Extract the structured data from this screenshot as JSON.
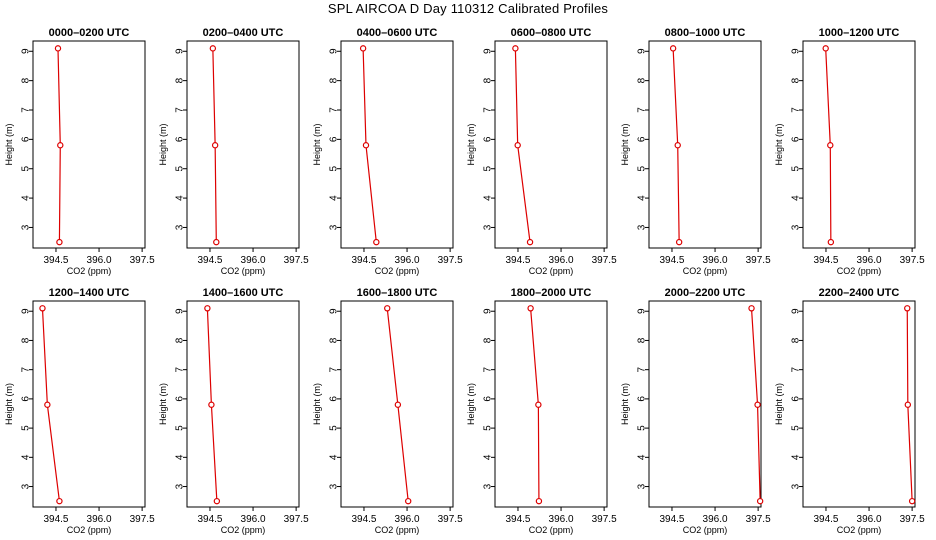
{
  "title": "SPL AIRCOA D  Day 110312  Calibrated Profiles",
  "colors": {
    "series": "#dd0000",
    "axes": "#000000"
  },
  "chart_data": [
    {
      "type": "line",
      "title": "0000–0200 UTC",
      "xlabel": "CO2 (ppm)",
      "ylabel": "Height (m)",
      "xlim": [
        393.7,
        397.6
      ],
      "ylim": [
        2.3,
        9.35
      ],
      "xticks": [
        "394.5",
        "396.0",
        "397.5"
      ],
      "yticks": [
        "3",
        "4",
        "5",
        "6",
        "7",
        "8",
        "9"
      ],
      "grid": false,
      "series": [
        {
          "x": [
            394.62,
            394.65,
            394.57
          ],
          "y": [
            2.5,
            5.8,
            9.1
          ]
        }
      ]
    },
    {
      "type": "line",
      "title": "0200–0400 UTC",
      "xlabel": "CO2 (ppm)",
      "ylabel": "Height (m)",
      "xlim": [
        393.7,
        397.6
      ],
      "ylim": [
        2.3,
        9.35
      ],
      "xticks": [
        "394.5",
        "396.0",
        "397.5"
      ],
      "yticks": [
        "3",
        "4",
        "5",
        "6",
        "7",
        "8",
        "9"
      ],
      "grid": false,
      "series": [
        {
          "x": [
            394.72,
            394.68,
            394.6
          ],
          "y": [
            2.5,
            5.8,
            9.1
          ]
        }
      ]
    },
    {
      "type": "line",
      "title": "0400–0600 UTC",
      "xlabel": "CO2 (ppm)",
      "ylabel": "Height (m)",
      "xlim": [
        393.7,
        397.6
      ],
      "ylim": [
        2.3,
        9.35
      ],
      "xticks": [
        "394.5",
        "396.0",
        "397.5"
      ],
      "yticks": [
        "3",
        "4",
        "5",
        "6",
        "7",
        "8",
        "9"
      ],
      "grid": false,
      "series": [
        {
          "x": [
            394.93,
            394.57,
            394.47
          ],
          "y": [
            2.5,
            5.8,
            9.1
          ]
        }
      ]
    },
    {
      "type": "line",
      "title": "0600–0800 UTC",
      "xlabel": "CO2 (ppm)",
      "ylabel": "Height (m)",
      "xlim": [
        393.7,
        397.6
      ],
      "ylim": [
        2.3,
        9.35
      ],
      "xticks": [
        "394.5",
        "396.0",
        "397.5"
      ],
      "yticks": [
        "3",
        "4",
        "5",
        "6",
        "7",
        "8",
        "9"
      ],
      "grid": false,
      "series": [
        {
          "x": [
            394.92,
            394.49,
            394.41
          ],
          "y": [
            2.5,
            5.8,
            9.1
          ]
        }
      ]
    },
    {
      "type": "line",
      "title": "0800–1000 UTC",
      "xlabel": "CO2 (ppm)",
      "ylabel": "Height (m)",
      "xlim": [
        393.7,
        397.6
      ],
      "ylim": [
        2.3,
        9.35
      ],
      "xticks": [
        "394.5",
        "396.0",
        "397.5"
      ],
      "yticks": [
        "3",
        "4",
        "5",
        "6",
        "7",
        "8",
        "9"
      ],
      "grid": false,
      "series": [
        {
          "x": [
            394.75,
            394.7,
            394.54
          ],
          "y": [
            2.5,
            5.8,
            9.1
          ]
        }
      ]
    },
    {
      "type": "line",
      "title": "1000–1200 UTC",
      "xlabel": "CO2 (ppm)",
      "ylabel": "Height (m)",
      "xlim": [
        393.7,
        397.6
      ],
      "ylim": [
        2.3,
        9.35
      ],
      "xticks": [
        "394.5",
        "396.0",
        "397.5"
      ],
      "yticks": [
        "3",
        "4",
        "5",
        "6",
        "7",
        "8",
        "9"
      ],
      "grid": false,
      "series": [
        {
          "x": [
            394.67,
            394.65,
            394.49
          ],
          "y": [
            2.5,
            5.8,
            9.1
          ]
        }
      ]
    },
    {
      "type": "line",
      "title": "1200–1400 UTC",
      "xlabel": "CO2 (ppm)",
      "ylabel": "Height (m)",
      "xlim": [
        393.7,
        397.6
      ],
      "ylim": [
        2.3,
        9.35
      ],
      "xticks": [
        "394.5",
        "396.0",
        "397.5"
      ],
      "yticks": [
        "3",
        "4",
        "5",
        "6",
        "7",
        "8",
        "9"
      ],
      "grid": false,
      "series": [
        {
          "x": [
            394.62,
            394.2,
            394.03
          ],
          "y": [
            2.5,
            5.8,
            9.1
          ]
        }
      ]
    },
    {
      "type": "line",
      "title": "1400–1600 UTC",
      "xlabel": "CO2 (ppm)",
      "ylabel": "Height (m)",
      "xlim": [
        393.7,
        397.6
      ],
      "ylim": [
        2.3,
        9.35
      ],
      "xticks": [
        "394.5",
        "396.0",
        "397.5"
      ],
      "yticks": [
        "3",
        "4",
        "5",
        "6",
        "7",
        "8",
        "9"
      ],
      "grid": false,
      "series": [
        {
          "x": [
            394.74,
            394.55,
            394.41
          ],
          "y": [
            2.5,
            5.8,
            9.1
          ]
        }
      ]
    },
    {
      "type": "line",
      "title": "1600–1800 UTC",
      "xlabel": "CO2 (ppm)",
      "ylabel": "Height (m)",
      "xlim": [
        393.7,
        397.6
      ],
      "ylim": [
        2.3,
        9.35
      ],
      "xticks": [
        "394.5",
        "396.0",
        "397.5"
      ],
      "yticks": [
        "3",
        "4",
        "5",
        "6",
        "7",
        "8",
        "9"
      ],
      "grid": false,
      "series": [
        {
          "x": [
            396.04,
            395.68,
            395.31
          ],
          "y": [
            2.5,
            5.8,
            9.1
          ]
        }
      ]
    },
    {
      "type": "line",
      "title": "1800–2000 UTC",
      "xlabel": "CO2 (ppm)",
      "ylabel": "Height (m)",
      "xlim": [
        393.7,
        397.6
      ],
      "ylim": [
        2.3,
        9.35
      ],
      "xticks": [
        "394.5",
        "396.0",
        "397.5"
      ],
      "yticks": [
        "3",
        "4",
        "5",
        "6",
        "7",
        "8",
        "9"
      ],
      "grid": false,
      "series": [
        {
          "x": [
            395.23,
            395.21,
            394.94
          ],
          "y": [
            2.5,
            5.8,
            9.1
          ]
        }
      ]
    },
    {
      "type": "line",
      "title": "2000–2200 UTC",
      "xlabel": "CO2 (ppm)",
      "ylabel": "Height (m)",
      "xlim": [
        393.7,
        397.6
      ],
      "ylim": [
        2.3,
        9.35
      ],
      "xticks": [
        "394.5",
        "396.0",
        "397.5"
      ],
      "yticks": [
        "3",
        "4",
        "5",
        "6",
        "7",
        "8",
        "9"
      ],
      "grid": false,
      "series": [
        {
          "x": [
            397.57,
            397.48,
            397.27
          ],
          "y": [
            2.5,
            5.8,
            9.1
          ]
        }
      ]
    },
    {
      "type": "line",
      "title": "2200–2400 UTC",
      "xlabel": "CO2 (ppm)",
      "ylabel": "Height (m)",
      "xlim": [
        393.7,
        397.6
      ],
      "ylim": [
        2.3,
        9.35
      ],
      "xticks": [
        "394.5",
        "396.0",
        "397.5"
      ],
      "yticks": [
        "3",
        "4",
        "5",
        "6",
        "7",
        "8",
        "9"
      ],
      "grid": false,
      "series": [
        {
          "x": [
            397.5,
            397.35,
            397.33
          ],
          "y": [
            2.5,
            5.8,
            9.1
          ]
        }
      ]
    }
  ]
}
